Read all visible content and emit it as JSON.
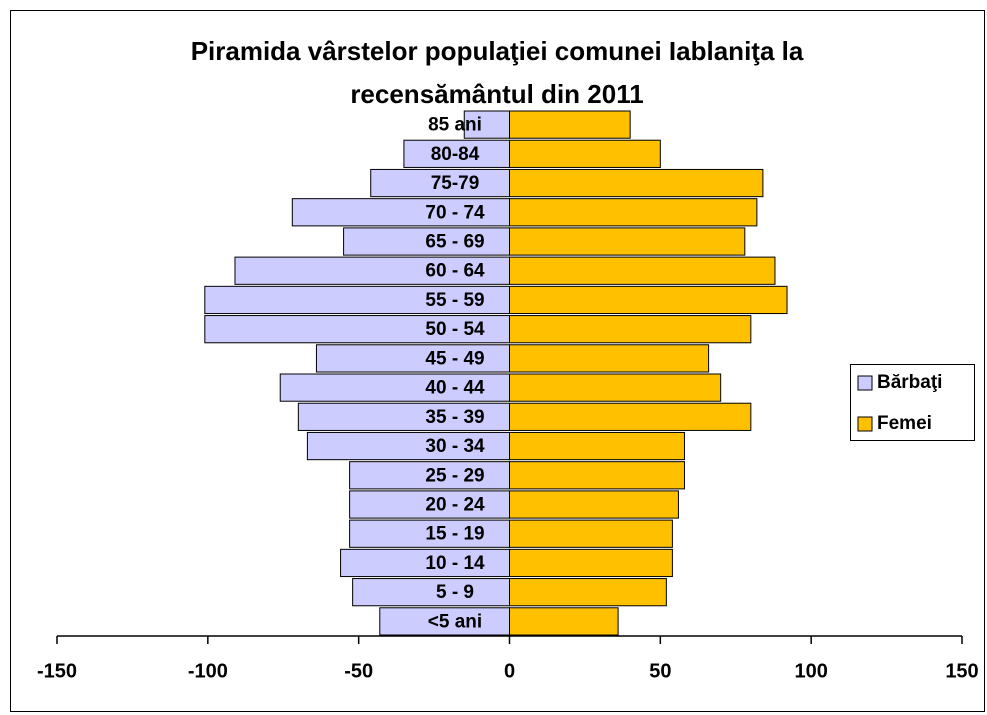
{
  "chart_data": {
    "type": "pyramid",
    "title": "Piramida vârstelor populaţiei comunei Iablaniţa la recensământul din 2011",
    "categories": [
      "<5 ani",
      "5 - 9",
      "10 - 14",
      "15 - 19",
      "20 - 24",
      "25 - 29",
      "30 - 34",
      "35 - 39",
      "40 - 44",
      "45 - 49",
      "50 - 54",
      "55 - 59",
      "60 - 64",
      "65 - 69",
      "70 - 74",
      "75-79",
      "80-84",
      "85 ani"
    ],
    "series": [
      {
        "name": "Bărbaţi",
        "color": "#ccccff",
        "values": [
          -43,
          -52,
          -56,
          -53,
          -53,
          -53,
          -67,
          -70,
          -76,
          -64,
          -101,
          -101,
          -91,
          -55,
          -72,
          -46,
          -35,
          -15
        ]
      },
      {
        "name": "Femei",
        "color": "#ffc000",
        "values": [
          36,
          52,
          54,
          54,
          56,
          58,
          58,
          80,
          70,
          66,
          80,
          92,
          88,
          78,
          82,
          84,
          50,
          40
        ]
      }
    ],
    "xlim": [
      -150,
      150
    ],
    "xticks": [
      -150,
      -100,
      -50,
      0,
      50,
      100,
      150
    ],
    "legend": "right"
  }
}
